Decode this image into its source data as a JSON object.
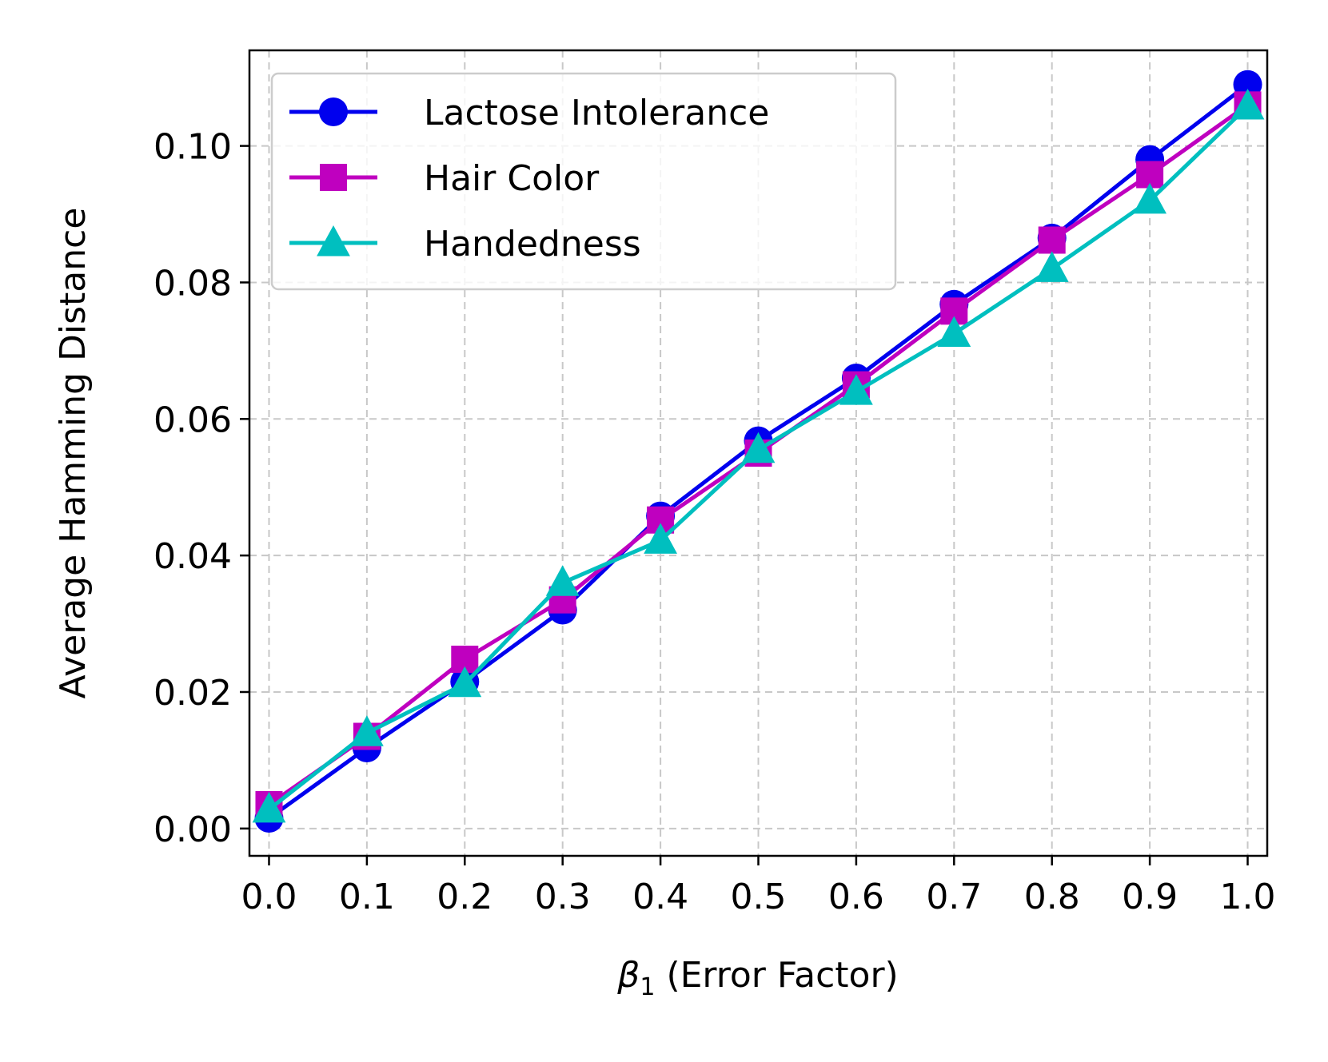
{
  "chart_data": {
    "type": "line",
    "title": "",
    "xlabel_symbol": "β",
    "xlabel_subscript": "1",
    "xlabel_text": "(Error Factor)",
    "ylabel": "Average Hamming Distance",
    "x": [
      0.0,
      0.1,
      0.2,
      0.3,
      0.4,
      0.5,
      0.6,
      0.7,
      0.8,
      0.9,
      1.0
    ],
    "xticks": [
      "0.0",
      "0.1",
      "0.2",
      "0.3",
      "0.4",
      "0.5",
      "0.6",
      "0.7",
      "0.8",
      "0.9",
      "1.0"
    ],
    "yticks_values": [
      0.0,
      0.02,
      0.04,
      0.06,
      0.08,
      0.1
    ],
    "yticks": [
      "0.00",
      "0.02",
      "0.04",
      "0.06",
      "0.08",
      "0.10"
    ],
    "xlim": [
      -0.02,
      1.02
    ],
    "ylim": [
      -0.004,
      0.114
    ],
    "grid": true,
    "legend_position": "upper-left",
    "series": [
      {
        "name": "Lactose Intolerance",
        "color": "#0000ee",
        "marker": "circle",
        "values": [
          0.0015,
          0.0118,
          0.0215,
          0.032,
          0.0458,
          0.0568,
          0.066,
          0.0768,
          0.0865,
          0.098,
          0.109
        ]
      },
      {
        "name": "Hair Color",
        "color": "#bf00bf",
        "marker": "square",
        "values": [
          0.0035,
          0.0135,
          0.0248,
          0.0335,
          0.0452,
          0.055,
          0.065,
          0.0758,
          0.0862,
          0.0958,
          0.106
        ]
      },
      {
        "name": "Handedness",
        "color": "#00bfbf",
        "marker": "triangle",
        "values": [
          0.0028,
          0.014,
          0.0212,
          0.036,
          0.0422,
          0.0555,
          0.064,
          0.0725,
          0.082,
          0.092,
          0.1058
        ]
      }
    ]
  }
}
